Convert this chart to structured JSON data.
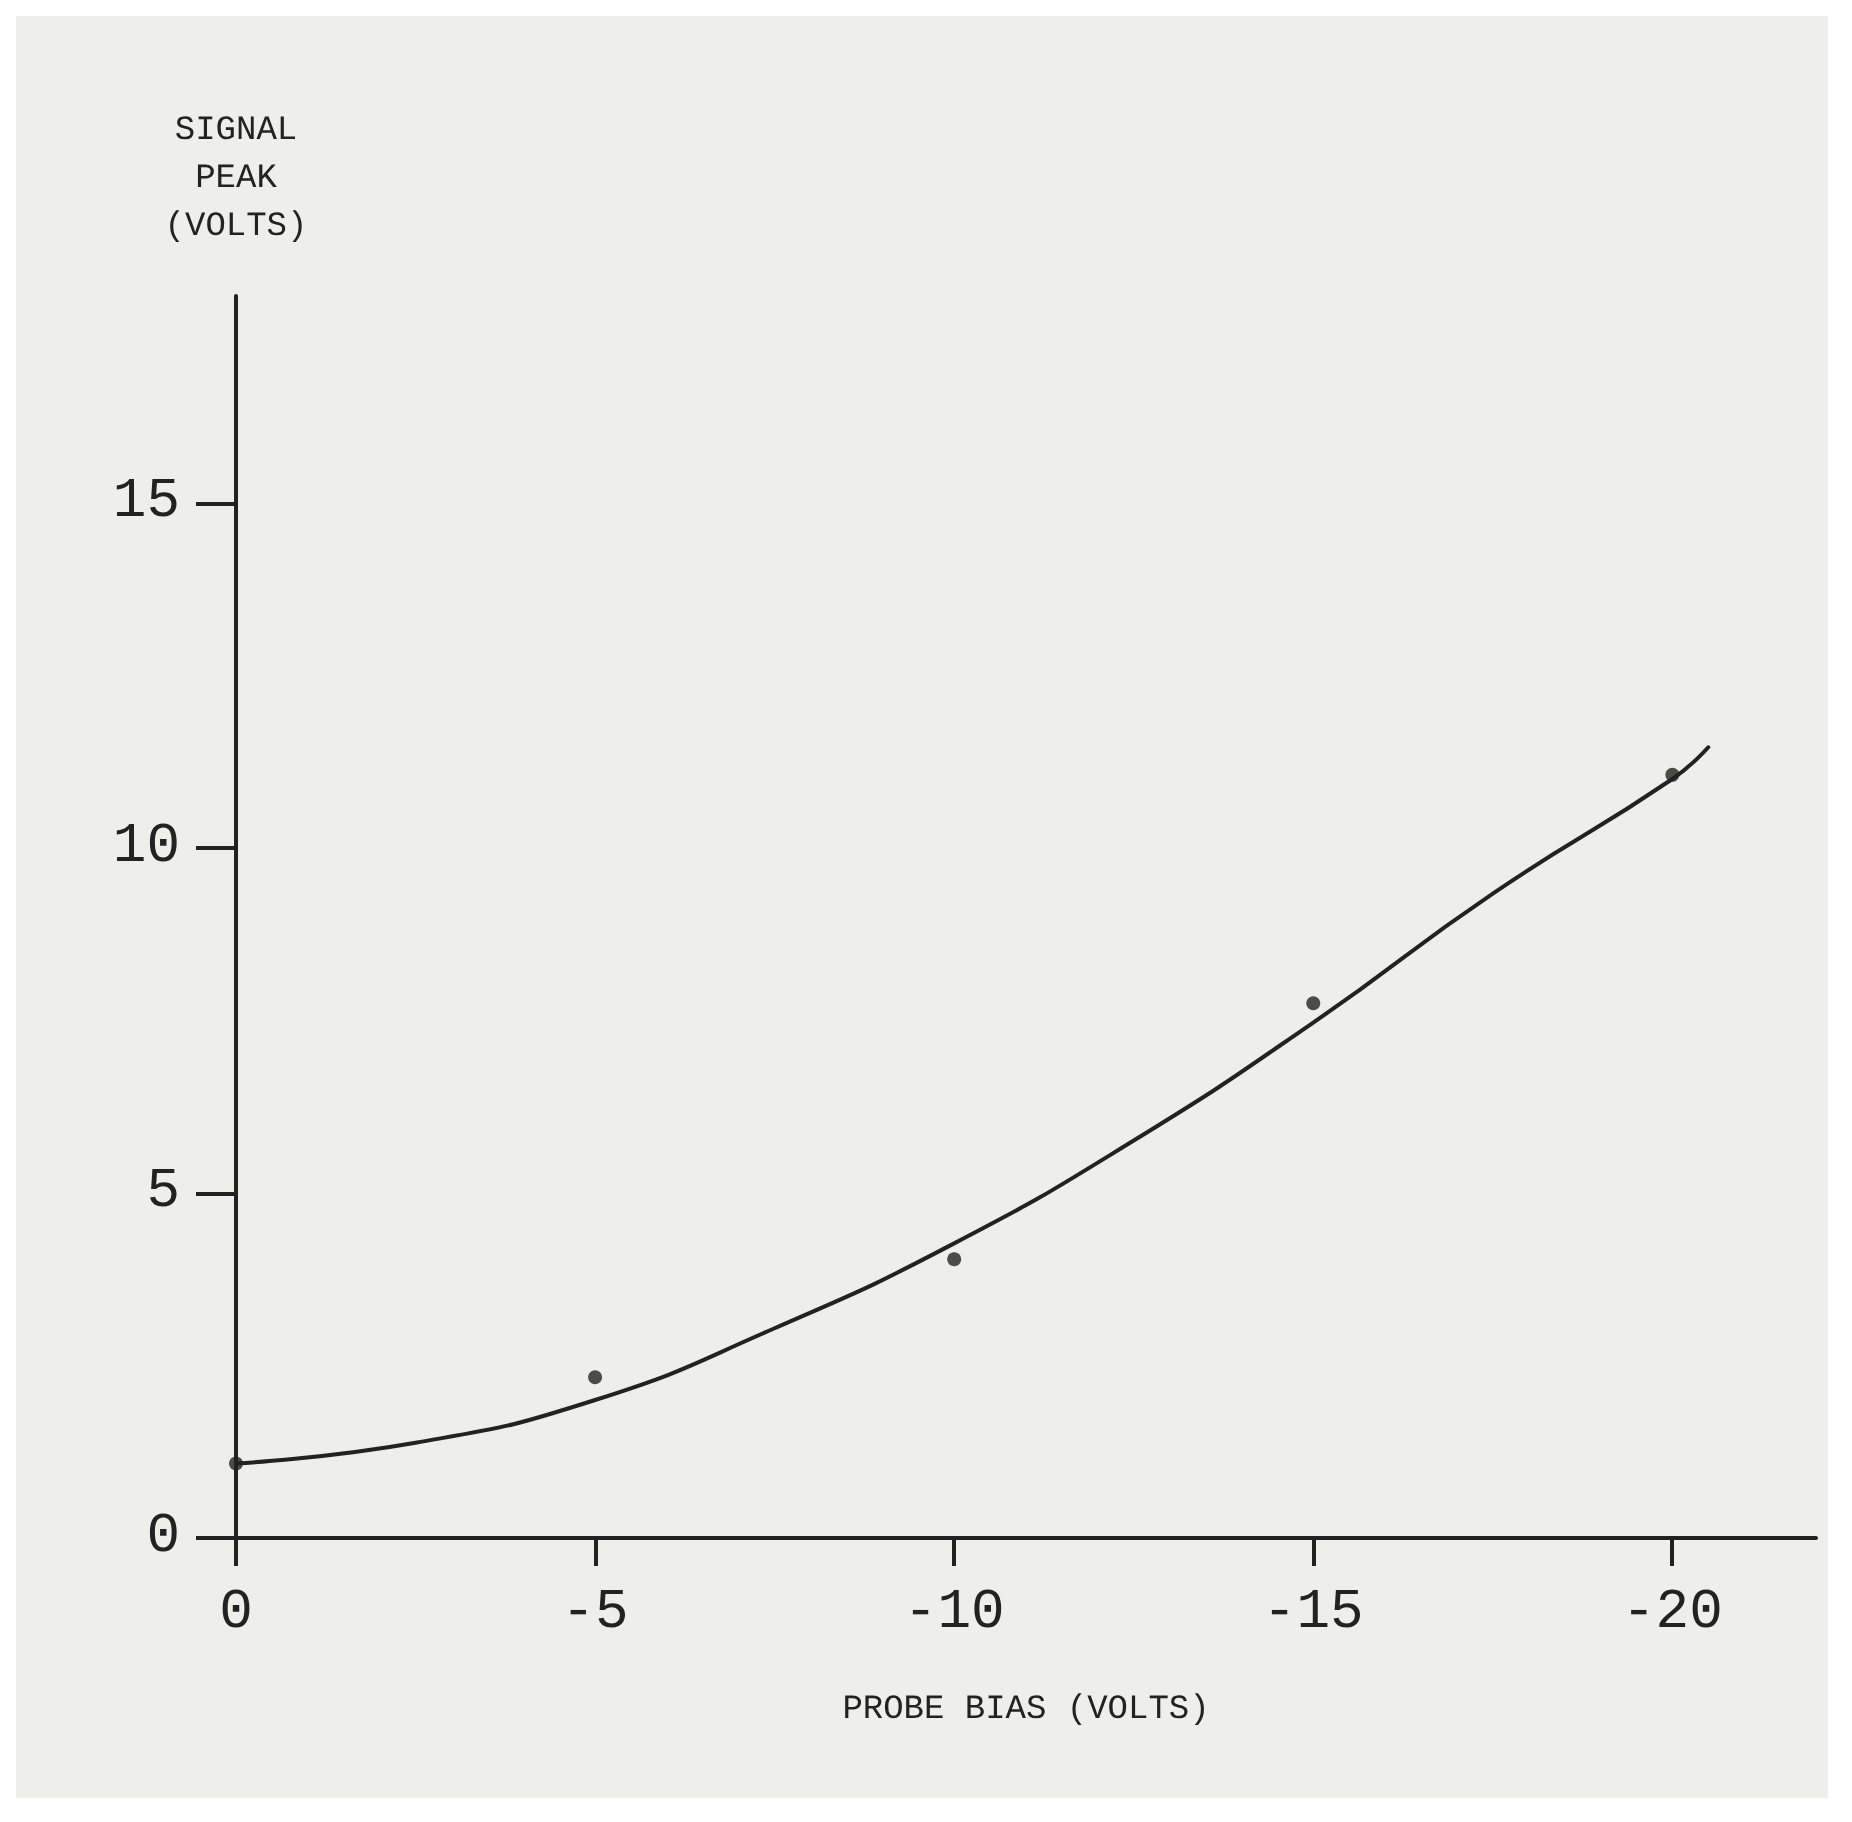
{
  "chart_data": {
    "type": "scatter",
    "xlabel": "PROBE BIAS (VOLTS)",
    "ylabel": "SIGNAL PEAK (VOLTS)",
    "xlim": [
      0,
      -22
    ],
    "xticks": [
      0,
      -5,
      -10,
      -15,
      -20
    ],
    "ylim": [
      0,
      18
    ],
    "yticks": [
      0,
      5,
      10,
      15
    ],
    "grid": false,
    "series": [
      {
        "type": "scatter",
        "color": "#222222",
        "marker": "circle",
        "x": [
          0,
          -5,
          -10,
          -15,
          -20
        ],
        "values": [
          1.08,
          2.33,
          4.04,
          7.75,
          11.06
        ]
      },
      {
        "type": "line",
        "color": "#222222",
        "marker": "none",
        "line_style": "solid",
        "x": [
          0,
          -2.5,
          -5,
          -7.5,
          -10,
          -12.5,
          -15,
          -17.5,
          -20,
          -20.5
        ],
        "values": [
          1.08,
          1.38,
          2.0,
          3.04,
          4.27,
          5.76,
          7.47,
          9.34,
          11.0,
          11.46
        ]
      }
    ]
  }
}
